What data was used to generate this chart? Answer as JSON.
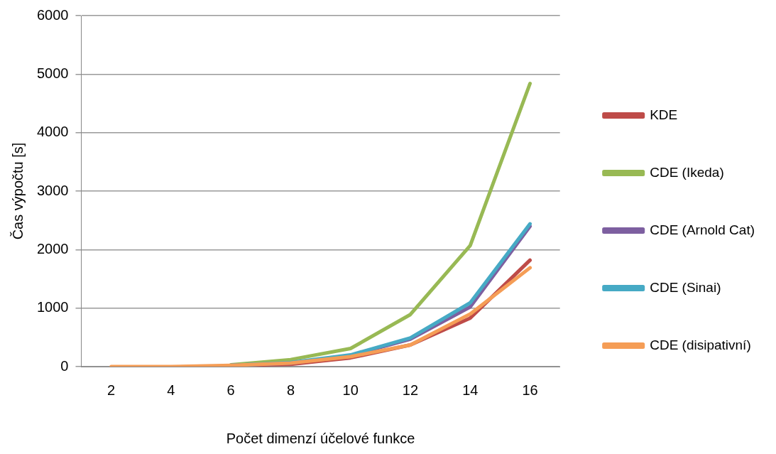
{
  "chart_data": {
    "type": "line",
    "xlabel": "Počet dimenzí účelové funkce",
    "ylabel": "Čas výpočtu [s]",
    "categories": [
      "2",
      "4",
      "6",
      "8",
      "10",
      "12",
      "14",
      "16"
    ],
    "series": [
      {
        "name": "KDE",
        "color": "#be4b48",
        "values": [
          null,
          null,
          20,
          40,
          150,
          370,
          830,
          1820
        ]
      },
      {
        "name": "CDE (Ikeda)",
        "color": "#98b954",
        "values": [
          null,
          null,
          30,
          120,
          310,
          890,
          2070,
          4840
        ]
      },
      {
        "name": "CDE (Arnold Cat)",
        "color": "#7d5fa0",
        "values": [
          null,
          null,
          20,
          60,
          190,
          470,
          1020,
          2400
        ]
      },
      {
        "name": "CDE (Sinai)",
        "color": "#46aac5",
        "values": [
          null,
          null,
          20,
          70,
          200,
          490,
          1090,
          2440
        ]
      },
      {
        "name": "CDE (disipativní)",
        "color": "#f59d56",
        "values": [
          0,
          0,
          20,
          60,
          170,
          370,
          900,
          1690
        ]
      }
    ],
    "ylim": [
      0,
      6000
    ],
    "yticks": [
      0,
      1000,
      2000,
      3000,
      4000,
      5000,
      6000
    ],
    "grid": "y",
    "legend": "right",
    "marker": "none",
    "line_style": "solid"
  }
}
